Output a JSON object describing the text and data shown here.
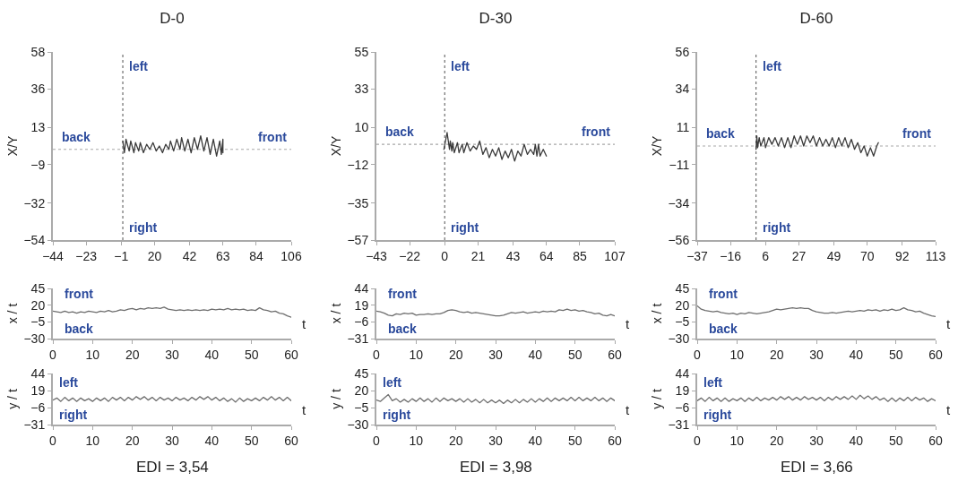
{
  "chart_data": [
    {
      "type": "line",
      "title": "D-0",
      "ylabel": "X/Y",
      "xlim": [
        -44,
        106
      ],
      "xticks": [
        -44,
        -23,
        -1,
        20,
        42,
        63,
        84,
        106
      ],
      "ylim": [
        -54,
        58
      ],
      "yticks": [
        -54,
        -32,
        -9,
        13,
        36,
        58
      ],
      "ref_lines": [
        {
          "axis": "x",
          "value": 0,
          "line_style": "dotted",
          "color": "#6e6e6e"
        },
        {
          "axis": "y",
          "value": 0,
          "line_style": "dotted",
          "color": "#a8a8a8"
        }
      ],
      "annotations": [
        "left",
        "back",
        "front",
        "right"
      ],
      "series": [
        {
          "color": "#3a3a3a",
          "x": [
            0,
            1,
            2,
            4,
            5,
            7,
            8,
            10,
            11,
            13,
            15,
            17,
            19,
            21,
            23,
            25,
            27,
            29,
            30,
            32,
            34,
            36,
            37,
            39,
            41,
            43,
            45,
            47,
            49,
            51,
            53,
            55,
            57,
            59,
            61,
            62,
            63,
            63
          ],
          "values": [
            5,
            -2,
            6,
            -1,
            5,
            -2,
            4,
            -1,
            4,
            -2,
            3,
            0,
            4,
            -1,
            2,
            -2,
            3,
            0,
            5,
            -1,
            6,
            0,
            7,
            -1,
            6,
            -2,
            7,
            0,
            8,
            -1,
            7,
            -3,
            6,
            -4,
            5,
            -3,
            6,
            -2
          ]
        }
      ]
    },
    {
      "type": "line",
      "title": "D-30",
      "ylabel": "X/Y",
      "xlim": [
        -43,
        107
      ],
      "xticks": [
        -43,
        -22,
        0,
        21,
        43,
        64,
        85,
        107
      ],
      "ylim": [
        -57,
        55
      ],
      "yticks": [
        -57,
        -35,
        -12,
        10,
        33,
        55
      ],
      "ref_lines": [
        {
          "axis": "x",
          "value": 0,
          "line_style": "dotted",
          "color": "#6e6e6e"
        },
        {
          "axis": "y",
          "value": 0,
          "line_style": "dotted",
          "color": "#a8a8a8"
        }
      ],
      "annotations": [
        "left",
        "back",
        "front",
        "right"
      ],
      "series": [
        {
          "color": "#3a3a3a",
          "x": [
            -0.5,
            1.5,
            3,
            3.5,
            4.5,
            5,
            6,
            8,
            9,
            11,
            12,
            14,
            16,
            18,
            20,
            22,
            24,
            26,
            28,
            30,
            32,
            34,
            36,
            38,
            40,
            42,
            44,
            46,
            48,
            50,
            52,
            54,
            56,
            57,
            58,
            59,
            60,
            62,
            64
          ],
          "values": [
            -3,
            7,
            -3,
            2,
            -4,
            1,
            -5,
            1,
            -5,
            0,
            -5,
            1,
            -4,
            -1,
            -3,
            2,
            -6,
            -2,
            -8,
            -3,
            -7,
            -2,
            -9,
            -4,
            -8,
            -3,
            -10,
            -4,
            -7,
            0,
            -6,
            -3,
            -6,
            0,
            -7,
            0,
            -7,
            -3,
            -7
          ]
        }
      ]
    },
    {
      "type": "line",
      "title": "D-60",
      "ylabel": "X/Y",
      "xlim": [
        -37,
        113
      ],
      "xticks": [
        -37,
        -16,
        6,
        27,
        49,
        70,
        92,
        113
      ],
      "ylim": [
        -56,
        56
      ],
      "yticks": [
        -56,
        -34,
        -11,
        11,
        34,
        56
      ],
      "ref_lines": [
        {
          "axis": "x",
          "value": 0,
          "line_style": "dotted",
          "color": "#6e6e6e"
        },
        {
          "axis": "y",
          "value": 0,
          "line_style": "dotted",
          "color": "#a8a8a8"
        }
      ],
      "annotations": [
        "left",
        "back",
        "front",
        "right"
      ],
      "series": [
        {
          "color": "#3a3a3a",
          "x": [
            0,
            0.5,
            1,
            2,
            3,
            5,
            6,
            8,
            10,
            12,
            14,
            16,
            18,
            20,
            22,
            24,
            26,
            28,
            30,
            32,
            34,
            36,
            38,
            40,
            42,
            44,
            46,
            48,
            50,
            52,
            54,
            56,
            58,
            60,
            62,
            64,
            66,
            68,
            70,
            72,
            74,
            76,
            77
          ],
          "values": [
            -2,
            6,
            -1,
            5,
            0,
            5,
            -1,
            5,
            1,
            5,
            0,
            5,
            -1,
            5,
            -1,
            6,
            1,
            6,
            0,
            6,
            2,
            6,
            0,
            5,
            0,
            4,
            0,
            5,
            -1,
            5,
            0,
            5,
            -1,
            4,
            -2,
            2,
            -4,
            0,
            -6,
            -1,
            -6,
            0,
            2
          ]
        }
      ]
    },
    {
      "type": "line",
      "ylabel": "x / t",
      "xlabel": "t",
      "xlim": [
        0,
        60
      ],
      "xticks": [
        0,
        10,
        20,
        30,
        40,
        50,
        60
      ],
      "ylim": [
        -30,
        45
      ],
      "yticks": [
        -30,
        -5,
        20,
        45
      ],
      "annotations": [
        "front",
        "back"
      ],
      "x": [
        0,
        1,
        2,
        3,
        4,
        5,
        6,
        7,
        8,
        9,
        10,
        11,
        12,
        13,
        14,
        15,
        16,
        17,
        18,
        19,
        20,
        21,
        22,
        23,
        24,
        25,
        26,
        27,
        28,
        29,
        30,
        31,
        32,
        33,
        34,
        35,
        36,
        37,
        38,
        39,
        40,
        41,
        42,
        43,
        44,
        45,
        46,
        47,
        48,
        49,
        50,
        51,
        52,
        53,
        54,
        55,
        56,
        57,
        58,
        59,
        60
      ],
      "series": [
        {
          "color": "#6e6e6e",
          "values": [
            11,
            10,
            9,
            11,
            9,
            10,
            8,
            10,
            9,
            11,
            10,
            9,
            11,
            10,
            12,
            10,
            11,
            13,
            12,
            14,
            15,
            13,
            15,
            14,
            16,
            15,
            16,
            15,
            17,
            14,
            13,
            12,
            13,
            12,
            13,
            12,
            13,
            12,
            13,
            12,
            14,
            13,
            14,
            13,
            15,
            13,
            14,
            13,
            14,
            12,
            13,
            12,
            16,
            13,
            12,
            10,
            11,
            8,
            7,
            4,
            2
          ]
        }
      ]
    },
    {
      "type": "line",
      "ylabel": "x / t",
      "xlabel": "t",
      "xlim": [
        0,
        60
      ],
      "xticks": [
        0,
        10,
        20,
        30,
        40,
        50,
        60
      ],
      "ylim": [
        -31,
        44
      ],
      "yticks": [
        -31,
        -6,
        19,
        44
      ],
      "annotations": [
        "front",
        "back"
      ],
      "x": [
        0,
        1,
        2,
        3,
        4,
        5,
        6,
        7,
        8,
        9,
        10,
        11,
        12,
        13,
        14,
        15,
        16,
        17,
        18,
        19,
        20,
        21,
        22,
        23,
        24,
        25,
        26,
        27,
        28,
        29,
        30,
        31,
        32,
        33,
        34,
        35,
        36,
        37,
        38,
        39,
        40,
        41,
        42,
        43,
        44,
        45,
        46,
        47,
        48,
        49,
        50,
        51,
        52,
        53,
        54,
        55,
        56,
        57,
        58,
        59,
        60
      ],
      "series": [
        {
          "color": "#6e6e6e",
          "values": [
            10,
            9,
            7,
            4,
            3,
            6,
            5,
            7,
            6,
            7,
            4,
            5,
            5,
            6,
            5,
            6,
            6,
            8,
            11,
            12,
            11,
            9,
            8,
            9,
            7,
            8,
            7,
            6,
            5,
            4,
            3,
            3,
            4,
            6,
            8,
            7,
            8,
            9,
            7,
            8,
            9,
            8,
            10,
            9,
            10,
            9,
            12,
            11,
            13,
            11,
            12,
            10,
            11,
            9,
            8,
            6,
            7,
            4,
            3,
            5,
            3
          ]
        }
      ]
    },
    {
      "type": "line",
      "ylabel": "x / t",
      "xlabel": "t",
      "xlim": [
        0,
        60
      ],
      "xticks": [
        0,
        10,
        20,
        30,
        40,
        50,
        60
      ],
      "ylim": [
        -30,
        45
      ],
      "yticks": [
        -30,
        -5,
        20,
        45
      ],
      "annotations": [
        "front",
        "back"
      ],
      "x": [
        0,
        1,
        2,
        3,
        4,
        5,
        6,
        7,
        8,
        9,
        10,
        11,
        12,
        13,
        14,
        15,
        16,
        17,
        18,
        19,
        20,
        21,
        22,
        23,
        24,
        25,
        26,
        27,
        28,
        29,
        30,
        31,
        32,
        33,
        34,
        35,
        36,
        37,
        38,
        39,
        40,
        41,
        42,
        43,
        44,
        45,
        46,
        47,
        48,
        49,
        50,
        51,
        52,
        53,
        54,
        55,
        56,
        57,
        58,
        59,
        60
      ],
      "series": [
        {
          "color": "#6e6e6e",
          "values": [
            19,
            14,
            12,
            11,
            10,
            11,
            9,
            8,
            7,
            8,
            6,
            8,
            7,
            9,
            8,
            7,
            8,
            9,
            10,
            12,
            14,
            13,
            14,
            15,
            16,
            15,
            16,
            15,
            15,
            12,
            10,
            9,
            8,
            8,
            9,
            8,
            9,
            10,
            11,
            10,
            11,
            12,
            11,
            13,
            12,
            13,
            11,
            13,
            12,
            14,
            12,
            13,
            16,
            13,
            12,
            10,
            11,
            8,
            6,
            4,
            3
          ]
        }
      ]
    },
    {
      "type": "line",
      "ylabel": "y / t",
      "xlabel": "t",
      "xlim": [
        0,
        60
      ],
      "xticks": [
        0,
        10,
        20,
        30,
        40,
        50,
        60
      ],
      "ylim": [
        -31,
        44
      ],
      "yticks": [
        -31,
        -6,
        19,
        44
      ],
      "annotations": [
        "left",
        "right",
        "EDI = 3,54"
      ],
      "x": [
        0,
        1,
        2,
        3,
        4,
        5,
        6,
        7,
        8,
        9,
        10,
        11,
        12,
        13,
        14,
        15,
        16,
        17,
        18,
        19,
        20,
        21,
        22,
        23,
        24,
        25,
        26,
        27,
        28,
        29,
        30,
        31,
        32,
        33,
        34,
        35,
        36,
        37,
        38,
        39,
        40,
        41,
        42,
        43,
        44,
        45,
        46,
        47,
        48,
        49,
        50,
        51,
        52,
        53,
        54,
        55,
        56,
        57,
        58,
        59,
        60
      ],
      "series": [
        {
          "color": "#6e6e6e",
          "values": [
            5,
            8,
            3,
            9,
            4,
            8,
            3,
            8,
            4,
            7,
            3,
            8,
            4,
            8,
            3,
            9,
            5,
            9,
            4,
            9,
            5,
            10,
            6,
            10,
            5,
            9,
            4,
            9,
            5,
            8,
            4,
            9,
            5,
            8,
            4,
            9,
            5,
            10,
            6,
            10,
            5,
            9,
            4,
            8,
            3,
            7,
            2,
            8,
            3,
            7,
            4,
            8,
            4,
            9,
            5,
            10,
            5,
            9,
            4,
            9,
            4
          ]
        }
      ]
    },
    {
      "type": "line",
      "ylabel": "y / t",
      "xlabel": "t",
      "xlim": [
        0,
        60
      ],
      "xticks": [
        0,
        10,
        20,
        30,
        40,
        50,
        60
      ],
      "ylim": [
        -30,
        45
      ],
      "yticks": [
        -30,
        -5,
        20,
        45
      ],
      "annotations": [
        "left",
        "right",
        "EDI = 3,98"
      ],
      "x": [
        0,
        1,
        2,
        3,
        4,
        5,
        6,
        7,
        8,
        9,
        10,
        11,
        12,
        13,
        14,
        15,
        16,
        17,
        18,
        19,
        20,
        21,
        22,
        23,
        24,
        25,
        26,
        27,
        28,
        29,
        30,
        31,
        32,
        33,
        34,
        35,
        36,
        37,
        38,
        39,
        40,
        41,
        42,
        43,
        44,
        45,
        46,
        47,
        48,
        49,
        50,
        51,
        52,
        53,
        54,
        55,
        56,
        57,
        58,
        59,
        60
      ],
      "series": [
        {
          "color": "#6e6e6e",
          "values": [
            6,
            4,
            9,
            14,
            5,
            8,
            3,
            7,
            3,
            8,
            4,
            9,
            4,
            8,
            3,
            9,
            4,
            9,
            5,
            8,
            4,
            8,
            3,
            8,
            3,
            7,
            2,
            7,
            2,
            6,
            2,
            6,
            1,
            6,
            2,
            7,
            2,
            7,
            3,
            8,
            3,
            8,
            4,
            9,
            4,
            9,
            5,
            9,
            5,
            10,
            5,
            10,
            5,
            9,
            5,
            10,
            5,
            9,
            4,
            9,
            5
          ]
        }
      ]
    },
    {
      "type": "line",
      "ylabel": "y / t",
      "xlabel": "t",
      "xlim": [
        0,
        60
      ],
      "xticks": [
        0,
        10,
        20,
        30,
        40,
        50,
        60
      ],
      "ylim": [
        -31,
        44
      ],
      "yticks": [
        -31,
        -6,
        19,
        44
      ],
      "annotations": [
        "left",
        "right",
        "EDI = 3,66"
      ],
      "x": [
        0,
        1,
        2,
        3,
        4,
        5,
        6,
        7,
        8,
        9,
        10,
        11,
        12,
        13,
        14,
        15,
        16,
        17,
        18,
        19,
        20,
        21,
        22,
        23,
        24,
        25,
        26,
        27,
        28,
        29,
        30,
        31,
        32,
        33,
        34,
        35,
        36,
        37,
        38,
        39,
        40,
        41,
        42,
        43,
        44,
        45,
        46,
        47,
        48,
        49,
        50,
        51,
        52,
        53,
        54,
        55,
        56,
        57,
        58,
        59,
        60
      ],
      "series": [
        {
          "color": "#6e6e6e",
          "values": [
            4,
            8,
            3,
            9,
            4,
            8,
            3,
            8,
            3,
            7,
            4,
            8,
            3,
            8,
            4,
            9,
            4,
            8,
            5,
            9,
            5,
            10,
            6,
            10,
            5,
            9,
            5,
            10,
            6,
            9,
            5,
            9,
            4,
            9,
            5,
            10,
            6,
            10,
            6,
            11,
            6,
            12,
            7,
            11,
            6,
            10,
            5,
            8,
            3,
            8,
            3,
            8,
            4,
            9,
            4,
            9,
            5,
            8,
            3,
            7,
            4
          ]
        }
      ]
    }
  ]
}
